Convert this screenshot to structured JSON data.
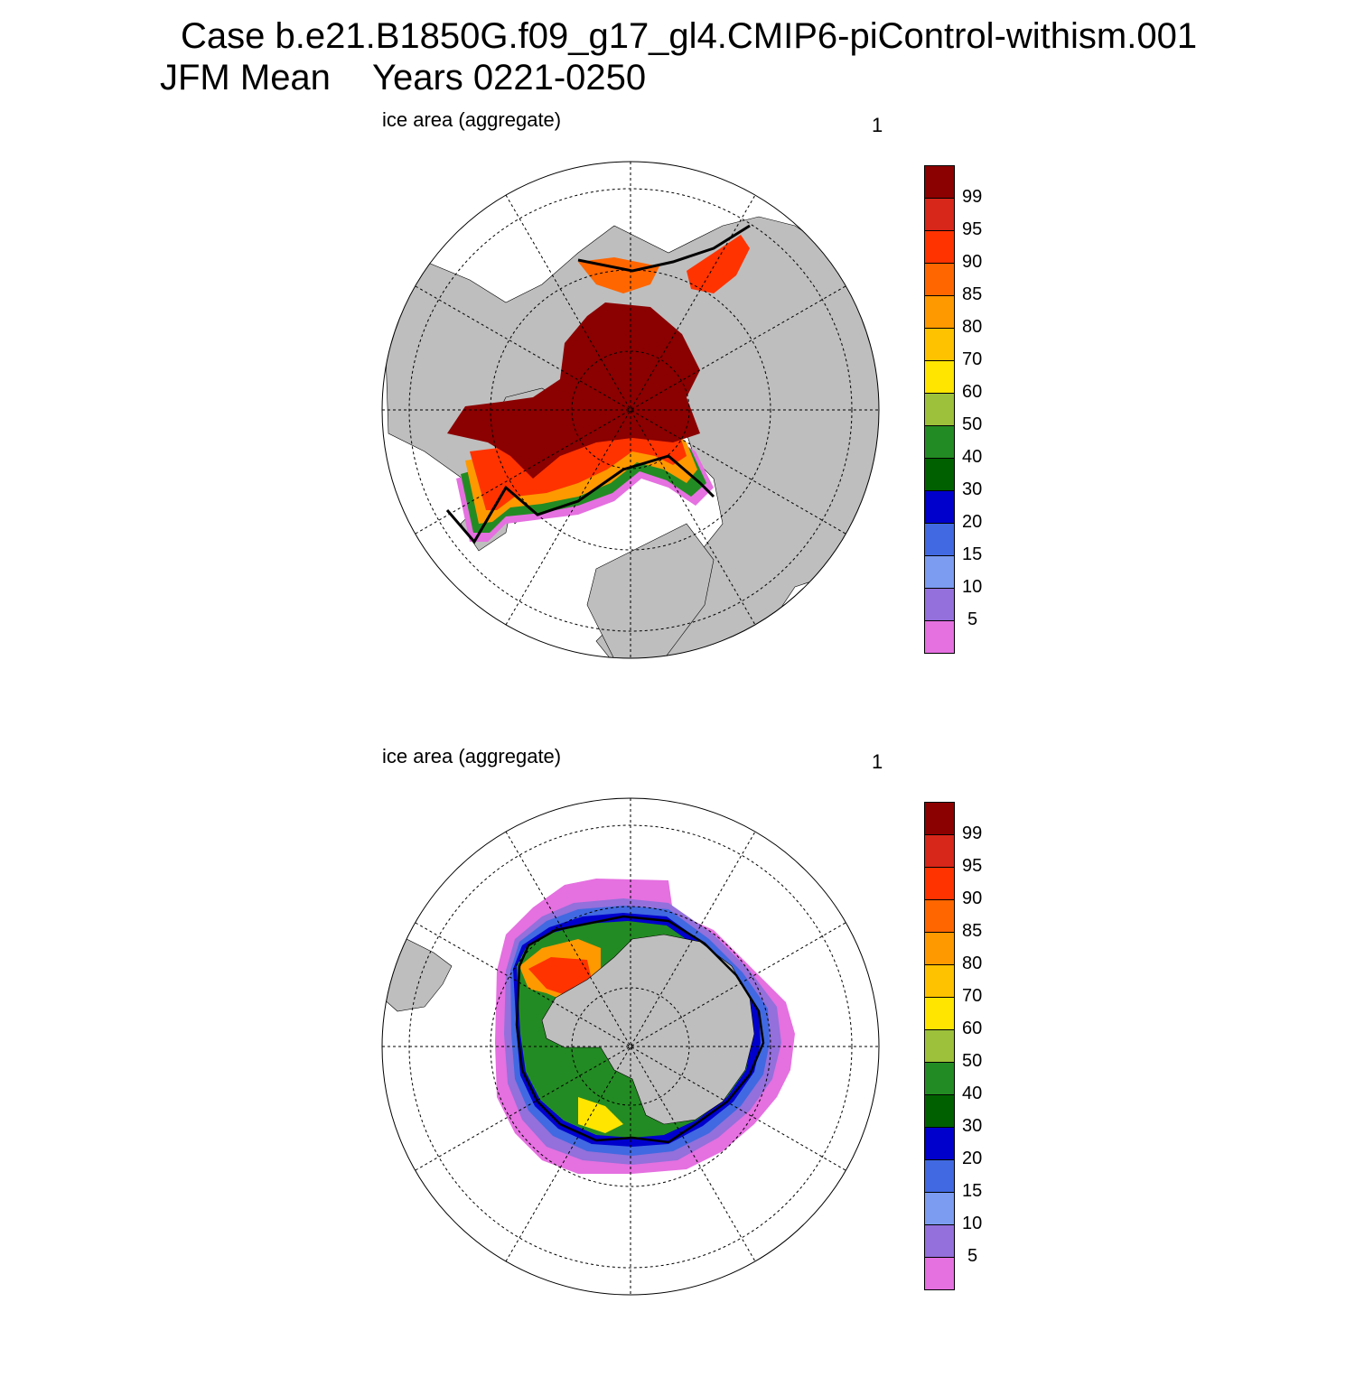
{
  "title": {
    "line1": "Case b.e21.B1850G.f09_g17_gl4.CMIP6-piControl-withism.001",
    "season": "JFM Mean",
    "years": "Years 0221-0250"
  },
  "panels": [
    {
      "id": "north",
      "hemisphere": "Northern",
      "label": "ice area  (aggregate)",
      "number": "1"
    },
    {
      "id": "south",
      "hemisphere": "Southern",
      "label": "ice area  (aggregate)",
      "number": "1"
    }
  ],
  "colorbar": {
    "labels": [
      "99",
      "95",
      "90",
      "85",
      "80",
      "70",
      "60",
      "50",
      "40",
      "30",
      "20",
      "15",
      "10",
      "5"
    ],
    "colors_top_to_bottom": [
      "#8b0000",
      "#d7261a",
      "#ff3300",
      "#ff6600",
      "#ff9900",
      "#ffc200",
      "#ffe500",
      "#9dc13a",
      "#238b23",
      "#006000",
      "#0000cd",
      "#4169e1",
      "#7b9cf0",
      "#9370db",
      "#e570e0"
    ]
  },
  "map_colors": {
    "land": "#bebebe",
    "ocean": "#ffffff",
    "ice_edge_contour": "#000000"
  }
}
